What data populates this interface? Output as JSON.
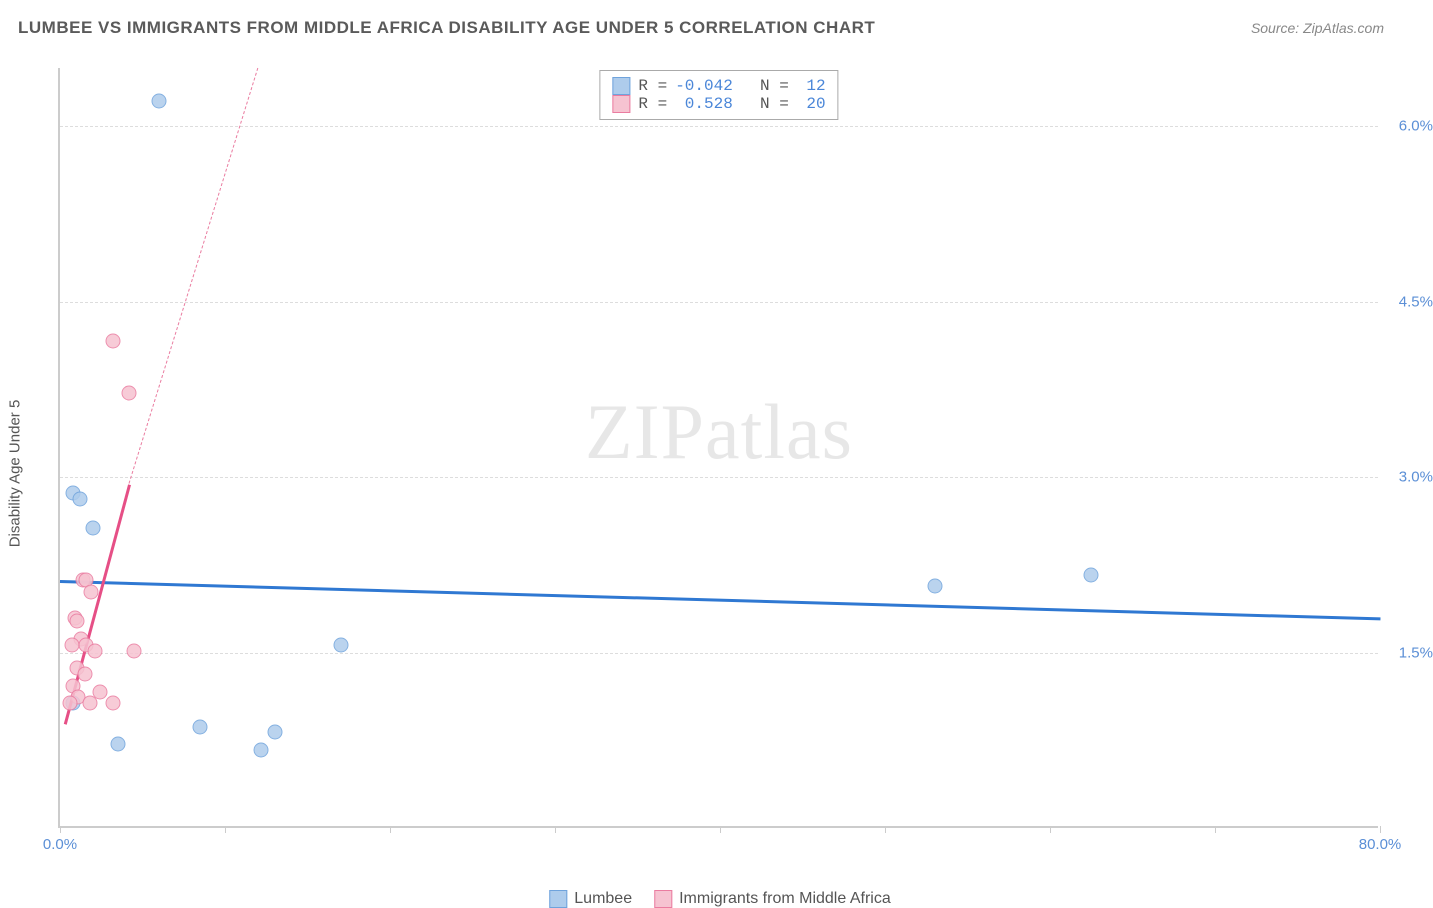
{
  "header": {
    "title": "LUMBEE VS IMMIGRANTS FROM MIDDLE AFRICA DISABILITY AGE UNDER 5 CORRELATION CHART",
    "source": "Source: ZipAtlas.com"
  },
  "ylabel": "Disability Age Under 5",
  "watermark": "ZIPatlas",
  "axes": {
    "xlim": [
      0,
      80
    ],
    "ylim": [
      0,
      6.5
    ],
    "xticks": [
      {
        "v": 0,
        "label": "0.0%"
      },
      {
        "v": 10
      },
      {
        "v": 20
      },
      {
        "v": 30
      },
      {
        "v": 40
      },
      {
        "v": 50
      },
      {
        "v": 60
      },
      {
        "v": 70
      },
      {
        "v": 80,
        "label": "80.0%"
      }
    ],
    "yticks": [
      {
        "v": 1.5,
        "label": "1.5%"
      },
      {
        "v": 3.0,
        "label": "3.0%"
      },
      {
        "v": 4.5,
        "label": "4.5%"
      },
      {
        "v": 6.0,
        "label": "6.0%"
      }
    ],
    "grid_color": "#dddddd",
    "tick_color": "#5b8fd6"
  },
  "series": [
    {
      "name": "Lumbee",
      "color_fill": "#aeccec",
      "color_stroke": "#6fa3dc",
      "R": "-0.042",
      "N": "12",
      "reg": {
        "x1": 0,
        "y1": 2.12,
        "x2": 80,
        "y2": 1.8,
        "color": "#2f78d2",
        "width": 2.5,
        "dashed": false
      },
      "points": [
        {
          "x": 6.0,
          "y": 6.2
        },
        {
          "x": 0.8,
          "y": 2.85
        },
        {
          "x": 1.2,
          "y": 2.8
        },
        {
          "x": 2.0,
          "y": 2.55
        },
        {
          "x": 53.0,
          "y": 2.05
        },
        {
          "x": 62.5,
          "y": 2.15
        },
        {
          "x": 17.0,
          "y": 1.55
        },
        {
          "x": 8.5,
          "y": 0.85
        },
        {
          "x": 13.0,
          "y": 0.8
        },
        {
          "x": 12.2,
          "y": 0.65
        },
        {
          "x": 3.5,
          "y": 0.7
        },
        {
          "x": 0.8,
          "y": 1.05
        }
      ]
    },
    {
      "name": "Immigrants from Middle Africa",
      "color_fill": "#f6c3d1",
      "color_stroke": "#ea7ca0",
      "R": "0.528",
      "N": "20",
      "reg": {
        "x1": 0.3,
        "y1": 0.9,
        "x2": 4.2,
        "y2": 2.95,
        "color": "#e64f86",
        "width": 2.5,
        "dashed": false
      },
      "reg_ext": {
        "x1": 4.2,
        "y1": 2.95,
        "x2": 12.0,
        "y2": 6.5,
        "color": "#ea7ca0",
        "dashed": true
      },
      "points": [
        {
          "x": 3.2,
          "y": 4.15
        },
        {
          "x": 4.2,
          "y": 3.7
        },
        {
          "x": 1.4,
          "y": 2.1
        },
        {
          "x": 1.6,
          "y": 2.1
        },
        {
          "x": 1.9,
          "y": 2.0
        },
        {
          "x": 0.9,
          "y": 1.78
        },
        {
          "x": 1.0,
          "y": 1.75
        },
        {
          "x": 1.3,
          "y": 1.6
        },
        {
          "x": 1.6,
          "y": 1.55
        },
        {
          "x": 2.1,
          "y": 1.5
        },
        {
          "x": 4.5,
          "y": 1.5
        },
        {
          "x": 1.0,
          "y": 1.35
        },
        {
          "x": 1.5,
          "y": 1.3
        },
        {
          "x": 0.8,
          "y": 1.2
        },
        {
          "x": 2.4,
          "y": 1.15
        },
        {
          "x": 1.1,
          "y": 1.1
        },
        {
          "x": 0.6,
          "y": 1.05
        },
        {
          "x": 1.8,
          "y": 1.05
        },
        {
          "x": 3.2,
          "y": 1.05
        },
        {
          "x": 0.7,
          "y": 1.55
        }
      ]
    }
  ],
  "legend_top": {
    "rows": [
      {
        "swatch_fill": "#aeccec",
        "swatch_stroke": "#6fa3dc",
        "r_label": "R =",
        "r_val": "-0.042",
        "n_label": "N =",
        "n_val": "12"
      },
      {
        "swatch_fill": "#f6c3d1",
        "swatch_stroke": "#ea7ca0",
        "r_label": "R =",
        "r_val": " 0.528",
        "n_label": "N =",
        "n_val": "20"
      }
    ]
  },
  "legend_bottom": [
    {
      "swatch_fill": "#aeccec",
      "swatch_stroke": "#6fa3dc",
      "label": "Lumbee"
    },
    {
      "swatch_fill": "#f6c3d1",
      "swatch_stroke": "#ea7ca0",
      "label": "Immigrants from Middle Africa"
    }
  ]
}
